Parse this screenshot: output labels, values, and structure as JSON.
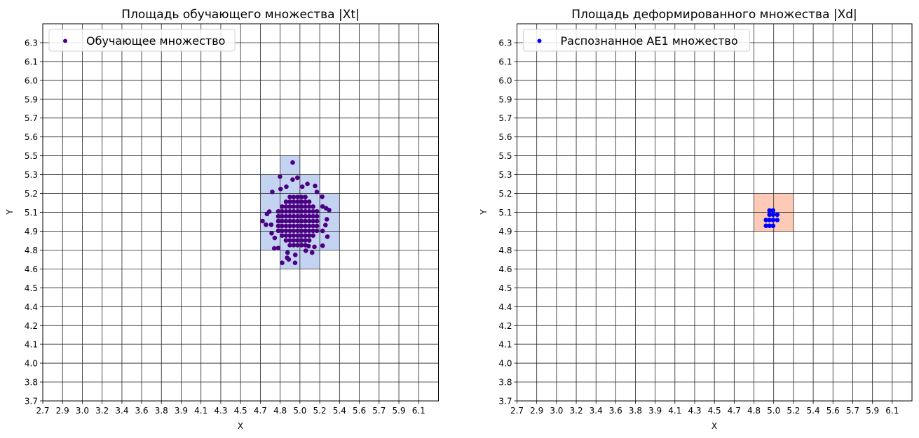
{
  "chart_data": [
    {
      "type": "scatter",
      "title": "Площадь обучающего множества |Xt|",
      "xlabel": "X",
      "ylabel": "Y",
      "xlim": [
        2.7,
        6.279
      ],
      "ylim": [
        3.7,
        6.437
      ],
      "x_ticks": [
        2.7,
        2.879,
        3.058,
        3.237,
        3.416,
        3.594,
        3.773,
        3.952,
        4.131,
        4.31,
        4.489,
        4.668,
        4.847,
        5.026,
        5.205,
        5.384,
        5.563,
        5.742,
        5.921,
        6.1
      ],
      "x_tick_labels": [
        "2.7",
        "2.9",
        "3.0",
        "3.2",
        "3.4",
        "3.6",
        "3.8",
        "3.9",
        "4.1",
        "4.3",
        "4.5",
        "4.7",
        "4.8",
        "5.0",
        "5.2",
        "5.4",
        "5.6",
        "5.7",
        "5.9",
        "6.1"
      ],
      "y_ticks": [
        3.7,
        3.837,
        3.974,
        4.111,
        4.247,
        4.384,
        4.521,
        4.658,
        4.795,
        4.932,
        5.068,
        5.205,
        5.342,
        5.479,
        5.616,
        5.753,
        5.889,
        6.026,
        6.163,
        6.3
      ],
      "y_tick_labels": [
        "3.7",
        "3.8",
        "4.0",
        "4.1",
        "4.2",
        "4.4",
        "4.5",
        "4.6",
        "4.8",
        "4.9",
        "5.1",
        "5.2",
        "5.3",
        "5.5",
        "5.6",
        "5.7",
        "5.9",
        "6.0",
        "6.1",
        "6.3"
      ],
      "grid": true,
      "legend_placement": "upper-left",
      "regions": {
        "color": "#c5d3f2",
        "rects": [
          {
            "x": [
              4.847,
              5.026
            ],
            "y": [
              5.342,
              5.479
            ]
          },
          {
            "x": [
              4.668,
              5.205
            ],
            "y": [
              5.205,
              5.342
            ]
          },
          {
            "x": [
              4.668,
              5.384
            ],
            "y": [
              4.795,
              5.205
            ]
          },
          {
            "x": [
              4.847,
              5.205
            ],
            "y": [
              4.658,
              4.795
            ]
          }
        ]
      },
      "series": [
        {
          "name": "Обучающее множество",
          "color": "#4b0082",
          "points": [
            [
              4.96,
              5.43
            ],
            [
              4.846,
              5.328
            ],
            [
              4.96,
              5.306
            ],
            [
              5.003,
              5.32
            ],
            [
              5.094,
              5.275
            ],
            [
              5.163,
              5.26
            ],
            [
              5.179,
              5.217
            ],
            [
              4.776,
              5.217
            ],
            [
              4.851,
              5.238
            ],
            [
              4.903,
              5.255
            ],
            [
              5.047,
              5.255
            ],
            [
              5.227,
              5.182
            ],
            [
              5.231,
              5.111
            ],
            [
              5.263,
              5.098
            ],
            [
              5.29,
              5.085
            ],
            [
              4.749,
              5.074
            ],
            [
              4.728,
              5.057
            ],
            [
              4.688,
              5.005
            ],
            [
              4.719,
              4.979
            ],
            [
              4.766,
              4.979
            ],
            [
              5.269,
              5.018
            ],
            [
              5.257,
              4.976
            ],
            [
              5.231,
              4.934
            ],
            [
              5.274,
              4.892
            ],
            [
              4.77,
              4.917
            ],
            [
              4.798,
              4.883
            ],
            [
              5.231,
              4.827
            ],
            [
              5.157,
              4.818
            ],
            [
              5.136,
              4.776
            ],
            [
              4.794,
              4.807
            ],
            [
              4.83,
              4.81
            ],
            [
              4.914,
              4.776
            ],
            [
              4.984,
              4.76
            ],
            [
              4.91,
              4.739
            ],
            [
              4.925,
              4.727
            ],
            [
              4.865,
              4.702
            ],
            [
              4.982,
              4.702
            ],
            [
              5.079,
              4.79
            ],
            [
              5.104,
              4.824
            ],
            [
              4.935,
              4.83
            ],
            [
              4.97,
              4.83
            ],
            [
              5.005,
              4.83
            ],
            [
              5.04,
              4.83
            ],
            [
              5.075,
              4.83
            ],
            [
              4.9,
              4.865
            ],
            [
              4.935,
              4.865
            ],
            [
              4.97,
              4.865
            ],
            [
              5.005,
              4.865
            ],
            [
              5.04,
              4.865
            ],
            [
              5.075,
              4.865
            ],
            [
              5.11,
              4.865
            ],
            [
              4.865,
              4.9
            ],
            [
              4.9,
              4.9
            ],
            [
              4.935,
              4.9
            ],
            [
              4.97,
              4.9
            ],
            [
              5.005,
              4.9
            ],
            [
              5.04,
              4.9
            ],
            [
              5.075,
              4.9
            ],
            [
              5.11,
              4.9
            ],
            [
              5.145,
              4.9
            ],
            [
              4.83,
              4.935
            ],
            [
              4.865,
              4.935
            ],
            [
              4.9,
              4.935
            ],
            [
              4.935,
              4.935
            ],
            [
              4.97,
              4.935
            ],
            [
              5.005,
              4.935
            ],
            [
              5.04,
              4.935
            ],
            [
              5.075,
              4.935
            ],
            [
              5.11,
              4.935
            ],
            [
              5.145,
              4.935
            ],
            [
              5.18,
              4.935
            ],
            [
              4.83,
              4.97
            ],
            [
              4.865,
              4.97
            ],
            [
              4.9,
              4.97
            ],
            [
              4.935,
              4.97
            ],
            [
              4.97,
              4.97
            ],
            [
              5.005,
              4.97
            ],
            [
              5.04,
              4.97
            ],
            [
              5.075,
              4.97
            ],
            [
              5.11,
              4.97
            ],
            [
              5.145,
              4.97
            ],
            [
              5.18,
              4.97
            ],
            [
              4.83,
              5.005
            ],
            [
              4.865,
              5.005
            ],
            [
              4.9,
              5.005
            ],
            [
              4.935,
              5.005
            ],
            [
              4.97,
              5.005
            ],
            [
              5.005,
              5.005
            ],
            [
              5.04,
              5.005
            ],
            [
              5.075,
              5.005
            ],
            [
              5.11,
              5.005
            ],
            [
              5.145,
              5.005
            ],
            [
              5.18,
              5.005
            ],
            [
              4.83,
              5.04
            ],
            [
              4.865,
              5.04
            ],
            [
              4.9,
              5.04
            ],
            [
              4.935,
              5.04
            ],
            [
              4.97,
              5.04
            ],
            [
              5.005,
              5.04
            ],
            [
              5.04,
              5.04
            ],
            [
              5.075,
              5.04
            ],
            [
              5.11,
              5.04
            ],
            [
              5.145,
              5.04
            ],
            [
              5.18,
              5.04
            ],
            [
              4.83,
              5.075
            ],
            [
              4.865,
              5.075
            ],
            [
              4.9,
              5.075
            ],
            [
              4.935,
              5.075
            ],
            [
              4.97,
              5.075
            ],
            [
              5.005,
              5.075
            ],
            [
              5.04,
              5.075
            ],
            [
              5.075,
              5.075
            ],
            [
              5.11,
              5.075
            ],
            [
              5.145,
              5.075
            ],
            [
              5.18,
              5.075
            ],
            [
              4.865,
              5.11
            ],
            [
              4.9,
              5.11
            ],
            [
              4.935,
              5.11
            ],
            [
              4.97,
              5.11
            ],
            [
              5.005,
              5.11
            ],
            [
              5.04,
              5.11
            ],
            [
              5.075,
              5.11
            ],
            [
              5.11,
              5.11
            ],
            [
              5.145,
              5.11
            ],
            [
              4.9,
              5.145
            ],
            [
              4.935,
              5.145
            ],
            [
              4.97,
              5.145
            ],
            [
              5.005,
              5.145
            ],
            [
              5.04,
              5.145
            ],
            [
              5.075,
              5.145
            ],
            [
              5.11,
              5.145
            ],
            [
              4.935,
              5.18
            ],
            [
              4.97,
              5.18
            ],
            [
              5.005,
              5.18
            ],
            [
              5.04,
              5.18
            ],
            [
              5.075,
              5.18
            ]
          ]
        }
      ]
    },
    {
      "type": "scatter",
      "title": "Площадь деформированного множества |Xd|",
      "xlabel": "X",
      "ylabel": "Y",
      "xlim": [
        2.7,
        6.279
      ],
      "ylim": [
        3.7,
        6.437
      ],
      "x_ticks": [
        2.7,
        2.879,
        3.058,
        3.237,
        3.416,
        3.594,
        3.773,
        3.952,
        4.131,
        4.31,
        4.489,
        4.668,
        4.847,
        5.026,
        5.205,
        5.384,
        5.563,
        5.742,
        5.921,
        6.1
      ],
      "x_tick_labels": [
        "2.7",
        "2.9",
        "3.0",
        "3.2",
        "3.4",
        "3.6",
        "3.8",
        "3.9",
        "4.1",
        "4.3",
        "4.5",
        "4.7",
        "4.8",
        "5.0",
        "5.2",
        "5.4",
        "5.6",
        "5.7",
        "5.9",
        "6.1"
      ],
      "y_ticks": [
        3.7,
        3.837,
        3.974,
        4.111,
        4.247,
        4.384,
        4.521,
        4.658,
        4.795,
        4.932,
        5.068,
        5.205,
        5.342,
        5.479,
        5.616,
        5.753,
        5.889,
        6.026,
        6.163,
        6.3
      ],
      "y_tick_labels": [
        "3.7",
        "3.8",
        "4.0",
        "4.1",
        "4.2",
        "4.4",
        "4.5",
        "4.6",
        "4.8",
        "4.9",
        "5.1",
        "5.2",
        "5.3",
        "5.5",
        "5.6",
        "5.7",
        "5.9",
        "6.0",
        "6.1",
        "6.3"
      ],
      "grid": true,
      "legend_placement": "upper-left",
      "regions": {
        "color": "#fdcab6",
        "rects": [
          {
            "x": [
              4.847,
              5.205
            ],
            "y": [
              4.932,
              5.205
            ]
          }
        ]
      },
      "series": [
        {
          "name": "Распознанное AE1 множество",
          "color": "#0000ff",
          "points": [
            [
              4.988,
              5.082
            ],
            [
              5.02,
              5.082
            ],
            [
              4.988,
              5.052
            ],
            [
              5.02,
              5.052
            ],
            [
              5.058,
              5.052
            ],
            [
              4.956,
              5.013
            ],
            [
              4.988,
              5.013
            ],
            [
              5.02,
              5.013
            ],
            [
              5.058,
              5.013
            ],
            [
              4.956,
              4.971
            ],
            [
              4.988,
              4.971
            ],
            [
              5.02,
              4.971
            ]
          ]
        }
      ]
    }
  ]
}
